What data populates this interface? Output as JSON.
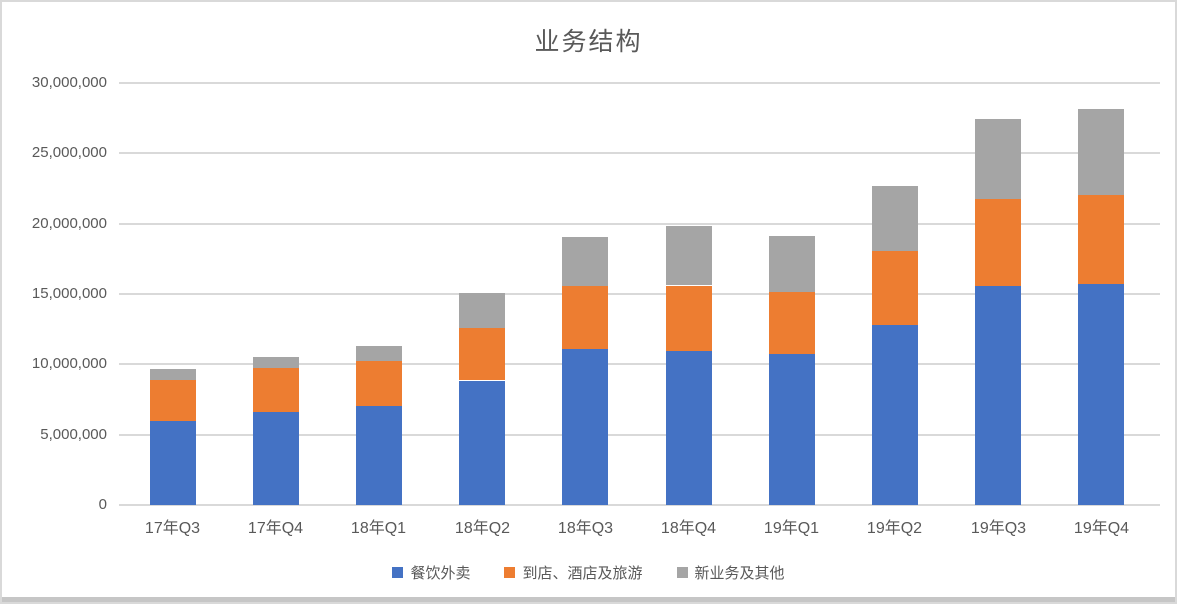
{
  "chart_data": {
    "type": "bar",
    "stacked": true,
    "title": "业务结构",
    "categories": [
      "17年Q3",
      "17年Q4",
      "18年Q1",
      "18年Q2",
      "18年Q3",
      "18年Q4",
      "19年Q1",
      "19年Q2",
      "19年Q3",
      "19年Q4"
    ],
    "series": [
      {
        "name": "餐饮外卖",
        "color": "#4472C4",
        "values": [
          5950000,
          6600000,
          7050000,
          8850000,
          11150000,
          11000000,
          10700000,
          12800000,
          15550000,
          15700000
        ]
      },
      {
        "name": "到店、酒店及旅游",
        "color": "#ED7D31",
        "values": [
          2950000,
          3150000,
          3200000,
          3700000,
          4450000,
          4600000,
          4500000,
          5250000,
          6200000,
          6350000
        ]
      },
      {
        "name": "新业务及其他",
        "color": "#A5A5A5",
        "values": [
          800000,
          750000,
          1050000,
          2500000,
          3450000,
          4200000,
          3950000,
          4650000,
          5700000,
          6100000
        ]
      }
    ],
    "totals": [
      9700000,
      10500000,
      11300000,
      15050000,
      19050000,
      19800000,
      19150000,
      22700000,
      27450000,
      28150000
    ],
    "xlabel": "",
    "ylabel": "",
    "ylim": [
      0,
      30000000
    ],
    "ytick_interval": 5000000,
    "ytick_labels": [
      "0",
      "5,000,000",
      "10,000,000",
      "15,000,000",
      "20,000,000",
      "25,000,000",
      "30,000,000"
    ],
    "grid": true,
    "legend_position": "bottom"
  },
  "theme": {
    "title_color": "#595959",
    "axis_label_color": "#595959",
    "gridline_color": "#D9D9D9",
    "card_border_color": "#D9D9D9",
    "bottom_edge_color": "#C6C6C6",
    "background": "#FFFFFF"
  }
}
